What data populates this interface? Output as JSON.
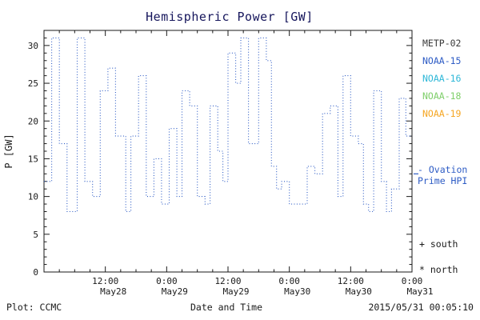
{
  "chart_data": {
    "type": "line",
    "style": "dotted-step",
    "title": "Hemispheric Power [GW]",
    "xlabel": "Date and Time",
    "ylabel": "P [GW]",
    "ylim": [
      0,
      32
    ],
    "yticks": [
      0,
      5,
      10,
      15,
      20,
      25,
      30
    ],
    "xlim_hours": [
      0,
      72
    ],
    "xticks": [
      {
        "hour": 12,
        "time": "12:00",
        "date": "May28"
      },
      {
        "hour": 24,
        "time": "0:00",
        "date": "May29"
      },
      {
        "hour": 36,
        "time": "12:00",
        "date": "May29"
      },
      {
        "hour": 48,
        "time": "0:00",
        "date": "May30"
      },
      {
        "hour": 60,
        "time": "12:00",
        "date": "May30"
      },
      {
        "hour": 72,
        "time": "0:00",
        "date": "May31"
      }
    ],
    "grid": false,
    "legend_position": "right",
    "legend": [
      {
        "label": "METP-02",
        "color": "#3a3a3a"
      },
      {
        "label": "NOAA-15",
        "color": "#2e5cc5"
      },
      {
        "label": "NOAA-16",
        "color": "#2fb8d8"
      },
      {
        "label": "NOAA-18",
        "color": "#7fcf6a"
      },
      {
        "label": "NOAA-19",
        "color": "#f5a623"
      }
    ],
    "series": [
      {
        "name": "NOAA-15",
        "color": "#2e5cc5",
        "points": [
          [
            0,
            12
          ],
          [
            1.5,
            31
          ],
          [
            3,
            17
          ],
          [
            4.5,
            8
          ],
          [
            6.5,
            31
          ],
          [
            8,
            12
          ],
          [
            9.5,
            10
          ],
          [
            11,
            24
          ],
          [
            12.5,
            27
          ],
          [
            14,
            18
          ],
          [
            16,
            8
          ],
          [
            17,
            18
          ],
          [
            18.5,
            26
          ],
          [
            20,
            10
          ],
          [
            21.5,
            15
          ],
          [
            23,
            9
          ],
          [
            24.5,
            19
          ],
          [
            26,
            10
          ],
          [
            27,
            24
          ],
          [
            28.5,
            22
          ],
          [
            30,
            10
          ],
          [
            31.5,
            9
          ],
          [
            32.5,
            22
          ],
          [
            34,
            16
          ],
          [
            35,
            12
          ],
          [
            36,
            29
          ],
          [
            37.5,
            25
          ],
          [
            38.5,
            31
          ],
          [
            40,
            17
          ],
          [
            42,
            31
          ],
          [
            43.5,
            28
          ],
          [
            44.5,
            14
          ],
          [
            45.5,
            11
          ],
          [
            46.5,
            12
          ],
          [
            48,
            9
          ],
          [
            51.5,
            14
          ],
          [
            53,
            13
          ],
          [
            54.5,
            21
          ],
          [
            56,
            22
          ],
          [
            57.5,
            10
          ],
          [
            58.5,
            26
          ],
          [
            60,
            18
          ],
          [
            61.5,
            17
          ],
          [
            62.5,
            9
          ],
          [
            63.5,
            8
          ],
          [
            64.5,
            24
          ],
          [
            66,
            12
          ],
          [
            67,
            8
          ],
          [
            68,
            11
          ],
          [
            69.5,
            23
          ],
          [
            70.8,
            18
          ]
        ]
      }
    ]
  },
  "annotations": {
    "ovation_line1": "- Ovation",
    "ovation_line2": "Prime HPI",
    "south": "+ south",
    "north": "* north"
  },
  "footer": {
    "plot_label": "Plot: CCMC",
    "timestamp": "2015/05/31 00:05:10"
  }
}
